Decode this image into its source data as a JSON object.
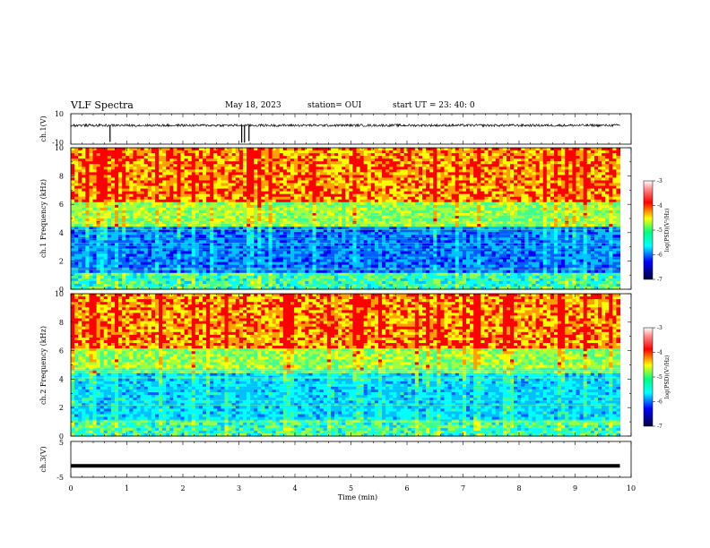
{
  "header": {
    "title": "VLF Spectra",
    "date": "May 18, 2023",
    "station": "station= OUI",
    "start": "start  UT  =   23: 40: 0"
  },
  "chart_data": [
    {
      "type": "line",
      "panel": "ch1-waveform",
      "ylabel": "ch.1(V)",
      "ylim": [
        -10,
        10
      ],
      "yticks": [
        10,
        -10
      ],
      "x": [
        0,
        1,
        2,
        3,
        4,
        5,
        6,
        7,
        8,
        9,
        9.8
      ],
      "series": [
        {
          "values": [
            2.3,
            2.4,
            2.3,
            2.5,
            2.4,
            2.3,
            2.4,
            2.4,
            2.3,
            2.4,
            2.4
          ]
        }
      ],
      "spikes": [
        {
          "x": 0.7,
          "y": -8.5
        },
        {
          "x": 3.05,
          "y": -9
        },
        {
          "x": 3.1,
          "y": -9
        },
        {
          "x": 3.18,
          "y": -8
        }
      ],
      "xlim": [
        0,
        10
      ]
    },
    {
      "type": "heatmap",
      "panel": "ch1-spectrogram",
      "ylabel": "ch.1  Frequency (kHz)",
      "ylim": [
        0,
        10
      ],
      "yticks": [
        0,
        2,
        4,
        6,
        8,
        10
      ],
      "xlim": [
        0,
        9.8
      ],
      "colorbar": {
        "label": "log(PSD)(V²/Hz)",
        "ticks": [
          -3,
          -4,
          -5,
          -6,
          -7
        ],
        "range": [
          -7,
          -3
        ]
      }
    },
    {
      "type": "heatmap",
      "panel": "ch2-spectrogram",
      "ylabel": "ch.2  Frequency (kHz)",
      "ylim": [
        0,
        10
      ],
      "yticks": [
        0,
        2,
        4,
        6,
        8,
        10
      ],
      "xlim": [
        0,
        9.8
      ],
      "colorbar": {
        "label": "log(PSD)(V²/Hz)",
        "ticks": [
          -3,
          -4,
          -5,
          -6,
          -7
        ],
        "range": [
          -7,
          -3
        ]
      }
    },
    {
      "type": "line",
      "panel": "ch3-waveform",
      "ylabel": "ch.3(V)",
      "xlabel": "Time  (min)",
      "ylim": [
        -5,
        5
      ],
      "yticks": [
        5,
        -5
      ],
      "x": [
        0,
        9.8
      ],
      "series": [
        {
          "values": [
            -1.8,
            -1.8
          ]
        }
      ],
      "xlim": [
        0,
        10
      ],
      "xticks": [
        0,
        1,
        2,
        3,
        4,
        5,
        6,
        7,
        8,
        9,
        10
      ]
    }
  ],
  "colors": {
    "axis": "#000000",
    "trace": "#000000",
    "colormap": [
      "#00007f",
      "#0000ff",
      "#00ffff",
      "#7fff7f",
      "#ffff00",
      "#ff0000",
      "#7f0000"
    ]
  }
}
